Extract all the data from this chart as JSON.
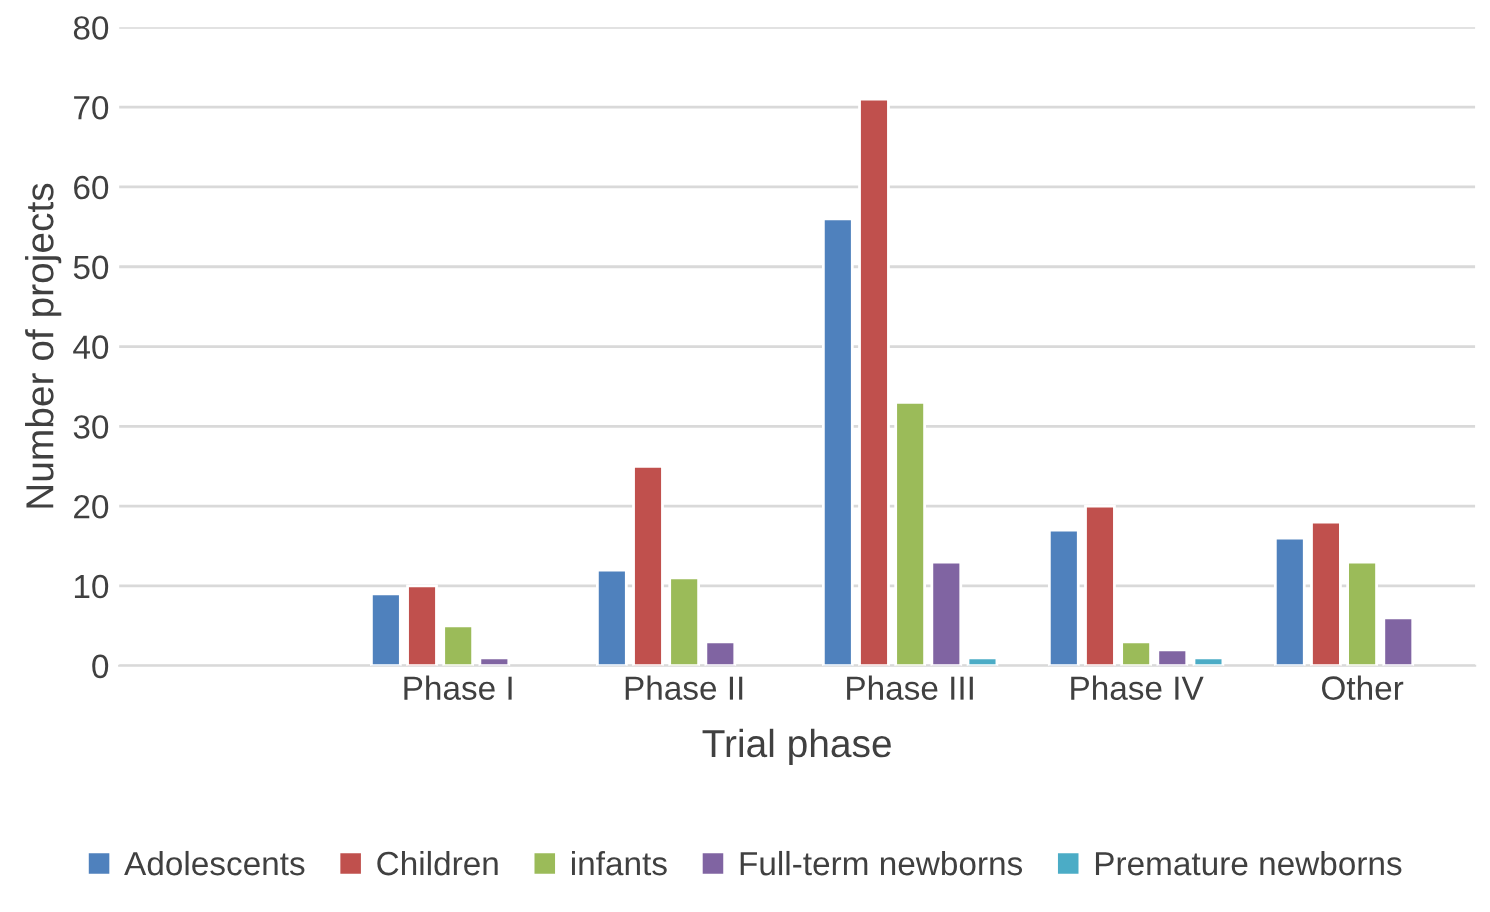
{
  "chart_data": {
    "type": "bar",
    "xlabel": "Trial phase",
    "ylabel": "Number of projects",
    "categories": [
      null,
      "Phase I",
      "Phase II",
      "Phase III",
      "Phase IV",
      "Other"
    ],
    "series": [
      {
        "name": "Adolescents",
        "color": "#4f81bd",
        "values": [
          null,
          9,
          12,
          56,
          17,
          16
        ]
      },
      {
        "name": "Children",
        "color": "#c0504d",
        "values": [
          null,
          10,
          25,
          71,
          20,
          18
        ]
      },
      {
        "name": "infants",
        "color": "#9bbb59",
        "values": [
          null,
          5,
          11,
          33,
          3,
          13
        ]
      },
      {
        "name": "Full-term newborns",
        "color": "#8064a2",
        "values": [
          null,
          1,
          3,
          13,
          2,
          6
        ]
      },
      {
        "name": "Premature newborns",
        "color": "#4bacc6",
        "values": [
          null,
          null,
          null,
          1,
          1,
          null
        ]
      }
    ],
    "ylim": [
      0,
      80
    ],
    "yticks": [
      0,
      10,
      20,
      30,
      40,
      50,
      60,
      70,
      80
    ],
    "grid": "y",
    "legend": "bottom"
  }
}
